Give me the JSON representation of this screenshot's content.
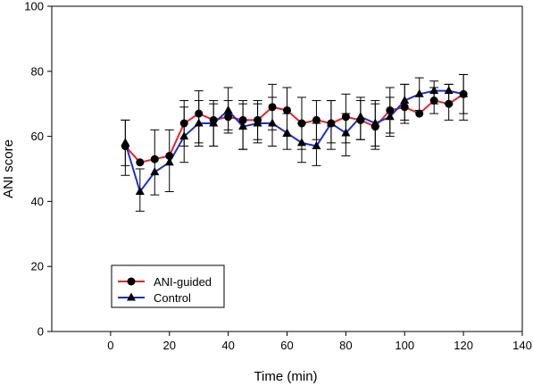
{
  "chart_data": {
    "type": "line",
    "xlabel": "Time (min)",
    "ylabel": "ANI score",
    "xlim": [
      -20,
      140
    ],
    "ylim": [
      0,
      100
    ],
    "xticks": [
      "0",
      "20",
      "40",
      "60",
      "80",
      "100",
      "120",
      "140"
    ],
    "yticks": [
      "0",
      "20",
      "40",
      "60",
      "80",
      "100"
    ],
    "legend_position": "bottom-left",
    "x": [
      5,
      10,
      15,
      20,
      25,
      30,
      35,
      40,
      45,
      50,
      55,
      60,
      65,
      70,
      75,
      80,
      85,
      90,
      95,
      100,
      105,
      110,
      115,
      120
    ],
    "series": [
      {
        "name": "ANI-guided",
        "line_color": "#e8232a",
        "marker": "circle",
        "values": [
          57,
          52,
          53,
          54,
          64,
          67,
          65,
          66,
          65,
          65,
          69,
          68,
          64,
          65,
          64,
          66,
          65,
          63,
          68,
          69,
          67,
          71,
          70,
          73
        ],
        "error_low": [
          48,
          null,
          null,
          null,
          57,
          58,
          57,
          61,
          56,
          59,
          62,
          60,
          56,
          59,
          56,
          58,
          59,
          56,
          61,
          64,
          null,
          67,
          65,
          65
        ],
        "error_high": [
          65,
          null,
          null,
          null,
          71,
          74,
          70,
          71,
          71,
          71,
          76,
          75,
          72,
          71,
          71,
          73,
          71,
          70,
          75,
          76,
          null,
          75,
          76,
          79
        ]
      },
      {
        "name": "Control",
        "line_color": "#1a2fd4",
        "marker": "triangle",
        "values": [
          58,
          43,
          49,
          52,
          60,
          64,
          64,
          68,
          63,
          64,
          64,
          61,
          58,
          57,
          64,
          61,
          66,
          64,
          66,
          71,
          73,
          74,
          74,
          73
        ],
        "error_low": [
          51,
          37,
          42,
          43,
          52,
          57,
          57,
          62,
          56,
          58,
          57,
          56,
          52,
          51,
          58,
          54,
          59,
          57,
          60,
          65,
          68,
          70,
          70,
          67
        ],
        "error_high": [
          65,
          50,
          62,
          62,
          69,
          71,
          71,
          75,
          70,
          70,
          72,
          67,
          64,
          64,
          71,
          67,
          72,
          71,
          72,
          76,
          78,
          77,
          76,
          79
        ]
      }
    ]
  }
}
